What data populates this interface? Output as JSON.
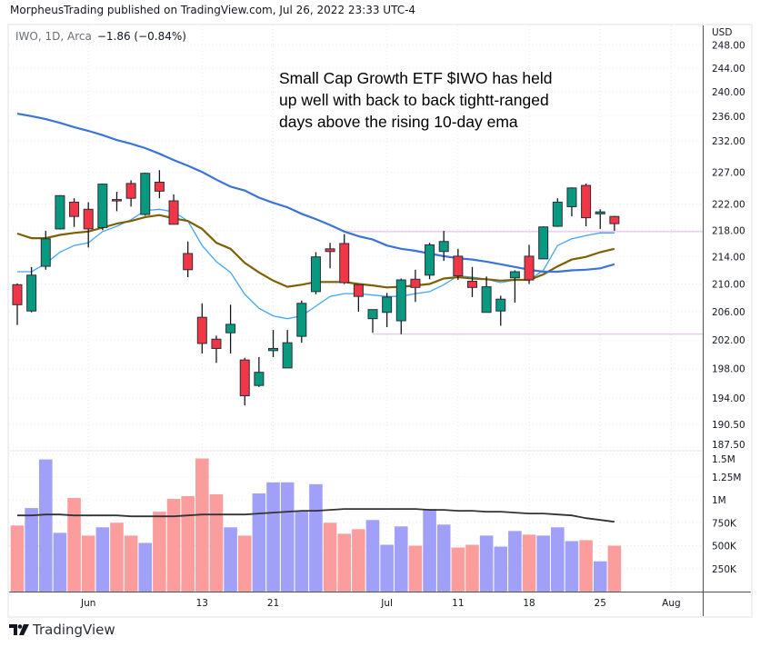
{
  "header": {
    "publisher_line": "MorpheusTrading published on TradingView.com, Jul 26, 2022 23:33 UTC-4"
  },
  "legend": {
    "symbol": "IWO, 1D, Arca",
    "change": "−1.86 (−0.84%)"
  },
  "annotation": {
    "lines": [
      "Small Cap Growth ETF $IWO has held",
      "up well with back to back tightt-ranged",
      "days above the rising 10-day ema"
    ]
  },
  "footer": {
    "brand": "TradingView",
    "logo_icon": "tradingview-logo-icon"
  },
  "colors": {
    "up": "#089981",
    "down": "#f23645",
    "vol_up": "#a0a0f8",
    "vol_down": "#fc9d9d",
    "ema10": "#42a5f5",
    "ma21": "#7f6000",
    "ma50": "#3a73d9",
    "vol_ma": "#333333",
    "hline": "#e1b5e8"
  },
  "chart_data": {
    "type": "candlestick",
    "price_scale": "log",
    "price_axis": {
      "currency": "USD",
      "ticks": [
        248,
        244,
        240,
        236,
        232,
        227,
        222,
        218,
        214,
        210,
        206,
        202,
        198,
        194,
        190.5,
        187.5
      ],
      "tick_labels": [
        "248.00",
        "244.00",
        "240.00",
        "236.00",
        "232.00",
        "227.00",
        "222.00",
        "218.00",
        "214.00",
        "210.00",
        "206.00",
        "202.00",
        "198.00",
        "194.00",
        "190.50",
        "187.50"
      ]
    },
    "volume_axis": {
      "ticks": [
        1500000,
        1250000,
        1000000,
        750000,
        500000,
        250000
      ],
      "tick_labels": [
        "1.5M",
        "1.25M",
        "1M",
        "750K",
        "500K",
        "250K"
      ]
    },
    "x_axis": {
      "ticks": [
        {
          "date": "2022-06-01",
          "label": "Jun"
        },
        {
          "date": "2022-06-13",
          "label": "13"
        },
        {
          "date": "2022-06-21",
          "label": "21"
        },
        {
          "date": "2022-07-01",
          "label": "Jul"
        },
        {
          "date": "2022-07-11",
          "label": "11"
        },
        {
          "date": "2022-07-18",
          "label": "18"
        },
        {
          "date": "2022-07-25",
          "label": "25"
        },
        {
          "date": "2022-08-01",
          "label": "Aug"
        }
      ]
    },
    "grid": true,
    "dates": [
      "2022-05-24",
      "2022-05-25",
      "2022-05-26",
      "2022-05-27",
      "2022-05-31",
      "2022-06-01",
      "2022-06-02",
      "2022-06-03",
      "2022-06-06",
      "2022-06-07",
      "2022-06-08",
      "2022-06-09",
      "2022-06-10",
      "2022-06-13",
      "2022-06-14",
      "2022-06-15",
      "2022-06-16",
      "2022-06-17",
      "2022-06-21",
      "2022-06-22",
      "2022-06-23",
      "2022-06-24",
      "2022-06-27",
      "2022-06-28",
      "2022-06-29",
      "2022-06-30",
      "2022-07-01",
      "2022-07-05",
      "2022-07-06",
      "2022-07-07",
      "2022-07-08",
      "2022-07-11",
      "2022-07-12",
      "2022-07-13",
      "2022-07-14",
      "2022-07-15",
      "2022-07-18",
      "2022-07-19",
      "2022-07-20",
      "2022-07-21",
      "2022-07-22",
      "2022-07-25",
      "2022-07-26"
    ],
    "ohlc": [
      [
        209.9,
        210.1,
        204.1,
        207.0
      ],
      [
        206.1,
        212.5,
        205.9,
        211.3
      ],
      [
        212.6,
        217.9,
        212.1,
        216.7
      ],
      [
        218.2,
        223.4,
        218.1,
        223.3
      ],
      [
        222.3,
        222.9,
        218.5,
        220.1
      ],
      [
        221.2,
        222.3,
        215.4,
        218.2
      ],
      [
        218.4,
        225.2,
        218.0,
        225.1
      ],
      [
        222.7,
        223.9,
        220.9,
        222.6
      ],
      [
        225.2,
        225.7,
        221.6,
        222.9
      ],
      [
        220.4,
        226.9,
        220.2,
        226.8
      ],
      [
        225.4,
        227.3,
        222.9,
        224.0
      ],
      [
        222.5,
        223.5,
        218.9,
        218.9
      ],
      [
        214.5,
        216.3,
        211.0,
        212.1
      ],
      [
        205.2,
        207.2,
        200.1,
        201.5
      ],
      [
        202.1,
        202.6,
        198.8,
        200.8
      ],
      [
        203.0,
        207.0,
        200.1,
        204.2
      ],
      [
        199.2,
        199.5,
        193.0,
        194.3
      ],
      [
        195.7,
        199.6,
        195.5,
        197.5
      ],
      [
        200.5,
        203.4,
        199.6,
        200.8
      ],
      [
        198.1,
        203.4,
        198.1,
        201.6
      ],
      [
        202.5,
        207.6,
        201.6,
        207.2
      ],
      [
        208.9,
        214.7,
        208.5,
        214.0
      ],
      [
        215.2,
        216.1,
        212.3,
        214.8
      ],
      [
        216.0,
        217.4,
        210.0,
        210.2
      ],
      [
        209.9,
        209.9,
        206.0,
        208.2
      ],
      [
        205.0,
        206.3,
        203.0,
        206.3
      ],
      [
        205.9,
        208.7,
        203.8,
        208.1
      ],
      [
        204.7,
        210.8,
        202.8,
        210.6
      ],
      [
        210.7,
        212.1,
        207.4,
        209.5
      ],
      [
        211.3,
        216.1,
        210.7,
        215.8
      ],
      [
        214.8,
        217.9,
        213.4,
        216.3
      ],
      [
        214.1,
        215.2,
        210.6,
        211.2
      ],
      [
        210.4,
        212.5,
        208.1,
        209.5
      ],
      [
        205.9,
        211.1,
        205.9,
        209.6
      ],
      [
        206.1,
        208.3,
        204.0,
        207.8
      ],
      [
        210.9,
        212.0,
        207.3,
        211.8
      ],
      [
        214.1,
        215.8,
        210.0,
        210.6
      ],
      [
        213.7,
        218.6,
        213.7,
        218.5
      ],
      [
        218.6,
        222.9,
        218.5,
        222.3
      ],
      [
        221.6,
        224.6,
        220.1,
        224.5
      ],
      [
        224.9,
        225.2,
        218.6,
        219.9
      ],
      [
        220.5,
        221.2,
        218.2,
        220.8
      ],
      [
        220.1,
        220.2,
        217.9,
        219.0
      ]
    ],
    "moving_averages": [
      {
        "key": "ema10",
        "values": [
          211.8,
          211.8,
          213.0,
          214.7,
          215.7,
          216.1,
          217.8,
          218.6,
          219.6,
          221.0,
          221.2,
          220.8,
          219.4,
          215.7,
          213.3,
          211.7,
          208.5,
          206.5,
          205.4,
          205.0,
          205.4,
          206.8,
          208.2,
          208.6,
          208.6,
          208.4,
          208.2,
          208.2,
          208.6,
          208.9,
          209.9,
          211.2,
          211.0,
          210.7,
          210.2,
          210.6,
          210.6,
          212.0,
          215.7,
          216.7,
          217.2,
          217.6,
          217.6
        ]
      },
      {
        "key": "ma21",
        "values": [
          217.5,
          216.8,
          216.8,
          217.3,
          217.6,
          217.8,
          218.4,
          219.0,
          219.4,
          220.0,
          220.3,
          219.8,
          219.4,
          218.2,
          216.1,
          215.2,
          213.1,
          211.7,
          210.5,
          209.6,
          209.9,
          210.3,
          210.3,
          210.3,
          210.0,
          209.8,
          209.5,
          209.6,
          209.8,
          210.0,
          210.8,
          211.0,
          210.8,
          210.7,
          210.5,
          210.6,
          210.6,
          211.4,
          212.6,
          213.6,
          214.0,
          214.7,
          215.2
        ]
      },
      {
        "key": "ma50",
        "values": [
          236.4,
          236.0,
          235.5,
          234.9,
          234.2,
          233.6,
          232.9,
          232.1,
          231.5,
          230.8,
          229.9,
          228.9,
          228.0,
          227.0,
          225.8,
          224.7,
          224.1,
          223.0,
          222.2,
          221.5,
          220.5,
          219.7,
          218.8,
          217.8,
          217.1,
          216.6,
          215.7,
          215.2,
          214.9,
          214.5,
          214.1,
          213.8,
          213.6,
          213.3,
          212.9,
          212.5,
          212.1,
          211.8,
          211.8,
          212.0,
          212.1,
          212.3,
          212.9
        ]
      }
    ],
    "horizontal_lines": [
      {
        "price": 217.8,
        "from": "2022-06-28"
      },
      {
        "price": 202.8,
        "from": "2022-06-30"
      }
    ],
    "volume": [
      720000,
      910000,
      1440000,
      640000,
      1020000,
      610000,
      700000,
      750000,
      610000,
      530000,
      870000,
      1010000,
      1040000,
      1450000,
      1060000,
      700000,
      610000,
      1070000,
      1190000,
      1190000,
      880000,
      1170000,
      750000,
      630000,
      680000,
      780000,
      510000,
      710000,
      500000,
      900000,
      730000,
      480000,
      510000,
      610000,
      490000,
      660000,
      620000,
      610000,
      700000,
      550000,
      560000,
      330000,
      500000
    ],
    "volume_ma": [
      830000,
      830000,
      840000,
      840000,
      830000,
      830000,
      830000,
      830000,
      820000,
      820000,
      820000,
      820000,
      830000,
      840000,
      840000,
      840000,
      840000,
      850000,
      860000,
      870000,
      880000,
      880000,
      890000,
      900000,
      900000,
      900000,
      900000,
      900000,
      900000,
      890000,
      890000,
      880000,
      880000,
      870000,
      870000,
      860000,
      850000,
      850000,
      840000,
      830000,
      800000,
      780000,
      760000
    ]
  }
}
